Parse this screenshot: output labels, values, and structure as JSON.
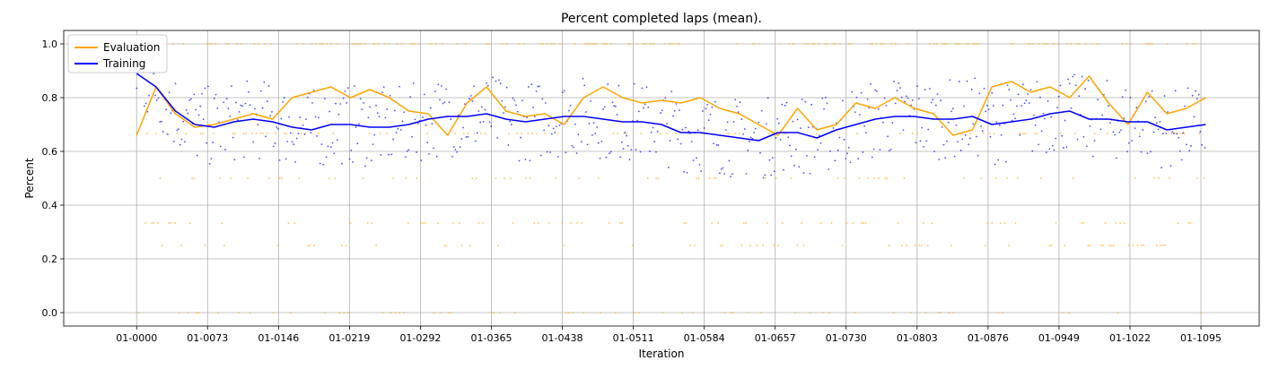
{
  "chart_data": {
    "type": "line",
    "title": "Percent completed laps (mean).",
    "xlabel": "Iteration",
    "ylabel": "Percent",
    "grid": true,
    "legend_position": "top-left",
    "xlim": [
      -75,
      1155
    ],
    "ylim": [
      -0.05,
      1.05
    ],
    "x_tick_values": [
      0,
      73,
      146,
      219,
      292,
      365,
      438,
      511,
      584,
      657,
      730,
      803,
      876,
      949,
      1022,
      1095
    ],
    "x_tick_labels": [
      "01-0000",
      "01-0073",
      "01-0146",
      "01-0219",
      "01-0292",
      "01-0365",
      "01-0438",
      "01-0511",
      "01-0584",
      "01-0657",
      "01-0730",
      "01-0803",
      "01-0876",
      "01-0949",
      "01-1022",
      "01-1095"
    ],
    "y_tick_values": [
      0.0,
      0.2,
      0.4,
      0.6,
      0.8,
      1.0
    ],
    "y_tick_labels": [
      "0.0",
      "0.2",
      "0.4",
      "0.6",
      "0.8",
      "1.0"
    ],
    "series": [
      {
        "name": "Evaluation",
        "color": "#ffa500",
        "x": [
          0,
          20,
          40,
          60,
          80,
          100,
          120,
          140,
          160,
          180,
          200,
          220,
          240,
          260,
          280,
          300,
          320,
          340,
          360,
          380,
          400,
          420,
          440,
          460,
          480,
          500,
          520,
          540,
          560,
          580,
          600,
          620,
          640,
          660,
          680,
          700,
          720,
          740,
          760,
          780,
          800,
          820,
          840,
          860,
          880,
          900,
          920,
          940,
          960,
          980,
          1000,
          1020,
          1040,
          1060,
          1080,
          1100
        ],
        "y": [
          0.66,
          0.84,
          0.74,
          0.69,
          0.7,
          0.72,
          0.74,
          0.72,
          0.8,
          0.82,
          0.84,
          0.8,
          0.83,
          0.8,
          0.75,
          0.74,
          0.66,
          0.78,
          0.84,
          0.75,
          0.73,
          0.74,
          0.7,
          0.8,
          0.84,
          0.8,
          0.78,
          0.79,
          0.78,
          0.8,
          0.76,
          0.74,
          0.7,
          0.66,
          0.76,
          0.68,
          0.7,
          0.78,
          0.76,
          0.8,
          0.76,
          0.74,
          0.66,
          0.68,
          0.84,
          0.86,
          0.82,
          0.84,
          0.8,
          0.88,
          0.78,
          0.7,
          0.82,
          0.74,
          0.76,
          0.8
        ]
      },
      {
        "name": "Training",
        "color": "#0000ff",
        "x": [
          0,
          20,
          40,
          60,
          80,
          100,
          120,
          140,
          160,
          180,
          200,
          220,
          240,
          260,
          280,
          300,
          320,
          340,
          360,
          380,
          400,
          420,
          440,
          460,
          480,
          500,
          520,
          540,
          560,
          580,
          600,
          620,
          640,
          660,
          680,
          700,
          720,
          740,
          760,
          780,
          800,
          820,
          840,
          860,
          880,
          900,
          920,
          940,
          960,
          980,
          1000,
          1020,
          1040,
          1060,
          1080,
          1100
        ],
        "y": [
          0.89,
          0.84,
          0.75,
          0.7,
          0.69,
          0.71,
          0.72,
          0.71,
          0.69,
          0.68,
          0.7,
          0.7,
          0.69,
          0.69,
          0.7,
          0.72,
          0.73,
          0.73,
          0.74,
          0.72,
          0.71,
          0.72,
          0.73,
          0.73,
          0.72,
          0.71,
          0.71,
          0.7,
          0.67,
          0.67,
          0.66,
          0.65,
          0.64,
          0.67,
          0.67,
          0.65,
          0.68,
          0.7,
          0.72,
          0.73,
          0.73,
          0.72,
          0.72,
          0.73,
          0.7,
          0.71,
          0.72,
          0.74,
          0.75,
          0.72,
          0.72,
          0.71,
          0.71,
          0.68,
          0.69,
          0.7
        ]
      }
    ]
  }
}
